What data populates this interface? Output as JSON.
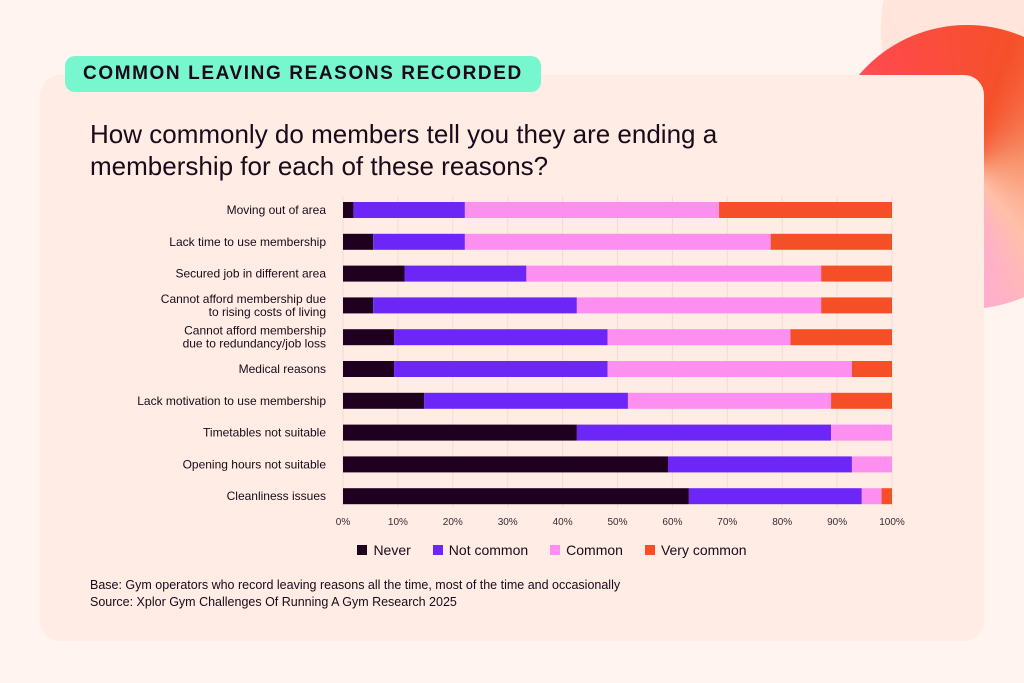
{
  "badge": "COMMON LEAVING REASONS RECORDED",
  "title": "How commonly do members tell you they are ending a membership for each of these reasons?",
  "footer": {
    "base": "Base: Gym operators who record leaving reasons all the time, most of the time and occasionally",
    "source": "Source: Xplor Gym Challenges Of Running A Gym Research 2025"
  },
  "chart_data": {
    "type": "bar",
    "orientation": "horizontal",
    "stacked": true,
    "title": "",
    "xlabel": "",
    "ylabel": "",
    "xlim": [
      0,
      100
    ],
    "x_ticks": [
      "0%",
      "10%",
      "20%",
      "30%",
      "40%",
      "50%",
      "60%",
      "70%",
      "80%",
      "90%",
      "100%"
    ],
    "grid": true,
    "legend_position": "bottom",
    "categories": [
      [
        "Moving out of area"
      ],
      [
        "Lack time to use membership"
      ],
      [
        "Secured job in different area"
      ],
      [
        "Cannot afford membership due",
        "to rising costs of living"
      ],
      [
        "Cannot afford membership",
        "due to redundancy/job loss"
      ],
      [
        "Medical reasons"
      ],
      [
        "Lack motivation to use membership"
      ],
      [
        "Timetables not suitable"
      ],
      [
        "Opening hours not suitable"
      ],
      [
        "Cleanliness issues"
      ]
    ],
    "series": [
      {
        "name": "Never",
        "color": "#20001f",
        "values": [
          1.9,
          5.5,
          11.2,
          5.5,
          9.3,
          9.3,
          14.8,
          42.6,
          59.2,
          63.0
        ]
      },
      {
        "name": "Not common",
        "color": "#6c26f5",
        "values": [
          20.3,
          16.7,
          22.2,
          37.1,
          38.9,
          38.9,
          37.1,
          46.3,
          33.5,
          31.5
        ]
      },
      {
        "name": "Common",
        "color": "#fd8ff0",
        "values": [
          46.3,
          55.7,
          53.7,
          44.5,
          33.3,
          44.5,
          37.0,
          11.1,
          7.3,
          3.6
        ]
      },
      {
        "name": "Very common",
        "color": "#f54f27",
        "values": [
          31.5,
          22.1,
          12.9,
          12.9,
          18.5,
          7.3,
          11.1,
          0,
          0,
          1.9
        ]
      }
    ]
  }
}
